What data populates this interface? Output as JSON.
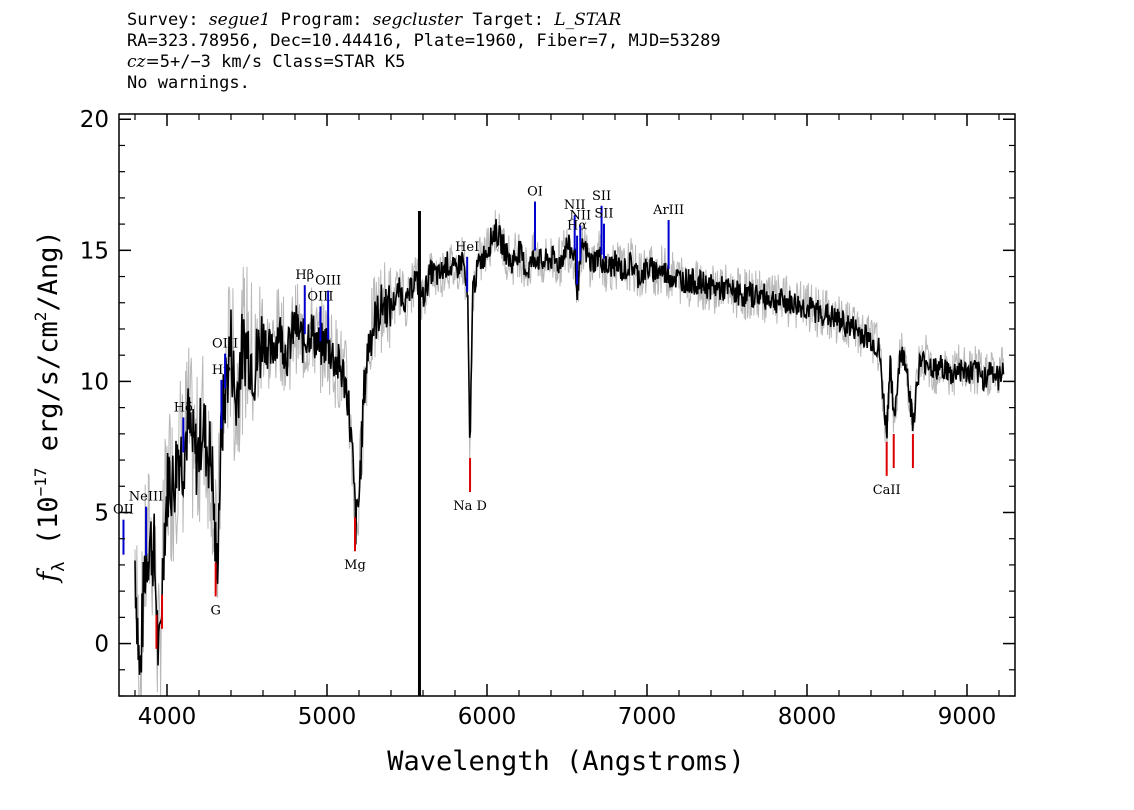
{
  "header": {
    "survey_label": "Survey:",
    "survey": "segue1",
    "program_label": "Program:",
    "program": "segcluster",
    "target_label": "Target:",
    "target": "L_STAR",
    "line2": "RA=323.78956, Dec=10.44416, Plate=1960, Fiber=7, MJD=53289",
    "cz_label": "cz=",
    "cz_value": "5+/−3",
    "cz_unit": " km/s Class=STAR K5",
    "warnings": "No warnings."
  },
  "chart_data": {
    "type": "line",
    "xlabel": "Wavelength (Angstroms)",
    "ylabel_parts": {
      "f": "f",
      "sub": "λ",
      "pre": " (10",
      "exp": "−17",
      "mid": " erg/s/cm",
      "exp2": "2",
      "post": "/Ang)"
    },
    "xlim": [
      3700,
      9300
    ],
    "ylim": [
      -2,
      20.2
    ],
    "xticks": [
      4000,
      5000,
      6000,
      7000,
      8000,
      9000
    ],
    "xtick_labels": [
      "4000",
      "5000",
      "6000",
      "7000",
      "8000",
      "9000"
    ],
    "yticks": [
      0,
      5,
      10,
      15,
      20
    ],
    "ytick_labels": [
      "0",
      "5",
      "10",
      "15",
      "20"
    ],
    "series": [
      {
        "color": "#000000",
        "error_color": "#b8b8b8",
        "x": [
          3800,
          3830,
          3860,
          3890,
          3920,
          3950,
          3980,
          4010,
          4040,
          4070,
          4100,
          4130,
          4160,
          4190,
          4220,
          4250,
          4280,
          4310,
          4340,
          4370,
          4400,
          4430,
          4460,
          4500,
          4550,
          4600,
          4650,
          4700,
          4750,
          4800,
          4850,
          4900,
          4950,
          5000,
          5050,
          5100,
          5130,
          5160,
          5180,
          5200,
          5230,
          5260,
          5300,
          5350,
          5400,
          5450,
          5500,
          5550,
          5600,
          5650,
          5700,
          5750,
          5800,
          5850,
          5880,
          5893,
          5910,
          5950,
          6000,
          6050,
          6100,
          6150,
          6200,
          6250,
          6300,
          6350,
          6400,
          6450,
          6500,
          6550,
          6563,
          6600,
          6650,
          6700,
          6750,
          6800,
          6850,
          6900,
          6950,
          7000,
          7100,
          7200,
          7300,
          7400,
          7500,
          7600,
          7700,
          7800,
          7900,
          8000,
          8100,
          8200,
          8300,
          8400,
          8450,
          8498,
          8520,
          8542,
          8580,
          8620,
          8662,
          8700,
          8750,
          8800,
          8850,
          8900,
          8950,
          9000,
          9050,
          9100,
          9150,
          9200,
          9230
        ],
        "values": [
          3.2,
          -1.5,
          2.8,
          4.0,
          3.5,
          -1.0,
          4.0,
          6.5,
          6.0,
          7.5,
          7.0,
          8.5,
          7.5,
          7.0,
          8.5,
          7.5,
          7.0,
          2.5,
          8.0,
          10.0,
          11.5,
          9.0,
          11.0,
          11.5,
          10.5,
          11.8,
          11.0,
          12.0,
          11.0,
          12.2,
          11.5,
          12.0,
          11.3,
          11.5,
          10.8,
          10.3,
          9.5,
          7.0,
          4.5,
          5.5,
          9.5,
          11.5,
          12.3,
          13.0,
          12.8,
          13.5,
          13.0,
          14.0,
          13.2,
          14.2,
          14.0,
          14.5,
          14.2,
          14.7,
          13.0,
          7.0,
          13.5,
          14.5,
          15.0,
          15.8,
          15.2,
          14.5,
          15.0,
          14.2,
          14.8,
          14.5,
          14.7,
          14.5,
          15.2,
          14.8,
          13.5,
          15.2,
          14.5,
          14.8,
          14.3,
          14.5,
          14.2,
          14.5,
          14.0,
          14.3,
          14.2,
          13.9,
          13.8,
          13.6,
          13.5,
          13.3,
          13.3,
          13.1,
          13.0,
          12.8,
          12.6,
          12.3,
          12.0,
          11.6,
          11.2,
          8.0,
          11.0,
          8.3,
          11.0,
          10.8,
          8.3,
          10.6,
          10.8,
          10.4,
          10.6,
          10.2,
          10.5,
          10.3,
          10.4,
          10.1,
          10.5,
          10.0,
          10.8
        ]
      }
    ],
    "spike_x": 5578,
    "emission_lines": [
      {
        "label": "OII",
        "x": 3728
      },
      {
        "label": "NeIII",
        "x": 3869
      },
      {
        "label": "Hδ",
        "x": 4102
      },
      {
        "label": "Hγ",
        "x": 4340
      },
      {
        "label": "OIII",
        "x": 4363
      },
      {
        "label": "Hβ",
        "x": 4861
      },
      {
        "label": "OIII",
        "x": 4959
      },
      {
        "label": "OIII",
        "x": 5007
      },
      {
        "label": "HeI",
        "x": 5876
      },
      {
        "label": "OI",
        "x": 6300
      },
      {
        "label": "NII",
        "x": 6548
      },
      {
        "label": "Hα",
        "x": 6563
      },
      {
        "label": "NII",
        "x": 6583
      },
      {
        "label": "SII",
        "x": 6716
      },
      {
        "label": "SII",
        "x": 6731
      },
      {
        "label": "ArIII",
        "x": 7135
      }
    ],
    "absorption_lines": [
      {
        "label": "",
        "x": 3934
      },
      {
        "label": "",
        "x": 3969
      },
      {
        "label": "G",
        "x": 4304
      },
      {
        "label": "Mg",
        "x": 5175
      },
      {
        "label": "Na D",
        "x": 5894
      },
      {
        "label": "CaII",
        "x": 8498
      },
      {
        "label": "",
        "x": 8542
      },
      {
        "label": "",
        "x": 8662
      }
    ],
    "emission_color": "#0000cc",
    "absorption_color": "#dd0000",
    "grid": false
  }
}
